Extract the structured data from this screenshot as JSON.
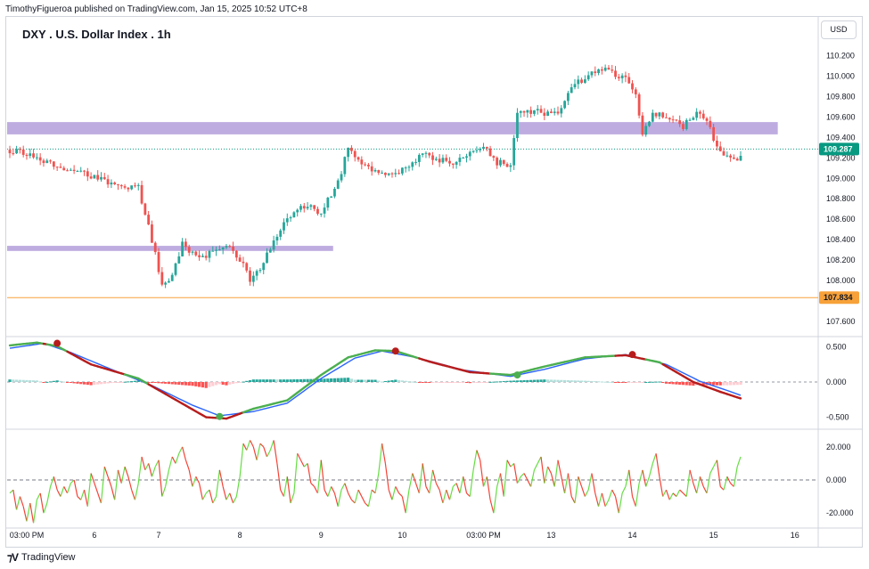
{
  "header": {
    "publish_line": "TimothyFigueroa published on TradingView.com, Jan 15, 2025 10:52 UTC+8",
    "symbol_title": "DXY . U.S. Dollar Index . 1h",
    "currency_button": "USD"
  },
  "footer": {
    "logo_text": "TradingView"
  },
  "colors": {
    "up": "#26a69a",
    "down": "#ef5350",
    "zone": "#b39ddb",
    "support_line": "#f7a13a",
    "last_price": "#089981",
    "macd_line": "#2962ff",
    "signal_line": "#4caf50",
    "signal_line_down": "#b71c1c",
    "hist_up_strong": "#26a69a",
    "hist_up_weak": "#b2dfdb",
    "hist_down_strong": "#ff5252",
    "hist_down_weak": "#ffcdd2",
    "osc_up": "#66dd44",
    "osc_down": "#f44336"
  },
  "chart_data": [
    {
      "type": "candlestick",
      "title": "DXY . U.S. Dollar Index . 1h",
      "y_axis": {
        "ylim": [
          107.47,
          110.5
        ],
        "ticks": [
          "110.200",
          "110.000",
          "109.800",
          "109.600",
          "109.400",
          "109.200",
          "109.000",
          "108.800",
          "108.600",
          "108.400",
          "108.200",
          "108.000",
          "107.600"
        ]
      },
      "x_axis": {
        "ticks": [
          "03:00 PM",
          "6",
          "7",
          "8",
          "9",
          "10",
          "03:00 PM",
          "13",
          "14",
          "15",
          "16"
        ]
      },
      "price_anchors": [
        {
          "t": 0,
          "p": 109.28
        },
        {
          "t": 6,
          "p": 109.22
        },
        {
          "t": 14,
          "p": 109.1
        },
        {
          "t": 22,
          "p": 109.06
        },
        {
          "t": 30,
          "p": 108.95
        },
        {
          "t": 38,
          "p": 108.9
        },
        {
          "t": 42,
          "p": 108.4
        },
        {
          "t": 45,
          "p": 107.96
        },
        {
          "t": 48,
          "p": 108.05
        },
        {
          "t": 51,
          "p": 108.35
        },
        {
          "t": 56,
          "p": 108.22
        },
        {
          "t": 61,
          "p": 108.28
        },
        {
          "t": 65,
          "p": 108.35
        },
        {
          "t": 68,
          "p": 108.2
        },
        {
          "t": 71,
          "p": 108.02
        },
        {
          "t": 74,
          "p": 108.12
        },
        {
          "t": 78,
          "p": 108.4
        },
        {
          "t": 83,
          "p": 108.65
        },
        {
          "t": 87,
          "p": 108.72
        },
        {
          "t": 92,
          "p": 108.68
        },
        {
          "t": 97,
          "p": 108.95
        },
        {
          "t": 100,
          "p": 109.32
        },
        {
          "t": 104,
          "p": 109.15
        },
        {
          "t": 108,
          "p": 109.05
        },
        {
          "t": 113,
          "p": 109.02
        },
        {
          "t": 118,
          "p": 109.12
        },
        {
          "t": 122,
          "p": 109.22
        },
        {
          "t": 126,
          "p": 109.2
        },
        {
          "t": 130,
          "p": 109.16
        },
        {
          "t": 135,
          "p": 109.2
        },
        {
          "t": 140,
          "p": 109.34
        },
        {
          "t": 144,
          "p": 109.16
        },
        {
          "t": 148,
          "p": 109.1
        },
        {
          "t": 150,
          "p": 109.62
        },
        {
          "t": 155,
          "p": 109.66
        },
        {
          "t": 160,
          "p": 109.62
        },
        {
          "t": 163,
          "p": 109.68
        },
        {
          "t": 166,
          "p": 109.9
        },
        {
          "t": 170,
          "p": 109.98
        },
        {
          "t": 174,
          "p": 110.08
        },
        {
          "t": 178,
          "p": 110.02
        },
        {
          "t": 182,
          "p": 109.96
        },
        {
          "t": 185,
          "p": 109.82
        },
        {
          "t": 187,
          "p": 109.45
        },
        {
          "t": 190,
          "p": 109.62
        },
        {
          "t": 195,
          "p": 109.6
        },
        {
          "t": 199,
          "p": 109.5
        },
        {
          "t": 203,
          "p": 109.65
        },
        {
          "t": 206,
          "p": 109.55
        },
        {
          "t": 209,
          "p": 109.3
        },
        {
          "t": 213,
          "p": 109.2
        },
        {
          "t": 216,
          "p": 109.2
        },
        {
          "t": 219,
          "p": 109.287
        }
      ],
      "zones": [
        {
          "from": 109.43,
          "to": 109.55,
          "x_end_fraction": 0.95
        },
        {
          "from": 108.29,
          "to": 108.34,
          "x_end_fraction": 0.4
        }
      ],
      "support_level": {
        "value": 107.834,
        "label": "107.834"
      },
      "last_price": {
        "value": 109.287,
        "label": "109.287"
      }
    },
    {
      "type": "line",
      "name": "MACD panel",
      "y_axis": {
        "ylim": [
          -0.62,
          0.62
        ],
        "ticks": [
          "0.500",
          "0.000",
          "-0.500"
        ]
      },
      "signal_anchors": [
        {
          "t": 0,
          "v": 0.52
        },
        {
          "t": 8,
          "v": 0.56
        },
        {
          "t": 14,
          "v": 0.51
        },
        {
          "t": 24,
          "v": 0.25
        },
        {
          "t": 38,
          "v": 0.05
        },
        {
          "t": 50,
          "v": -0.28
        },
        {
          "t": 58,
          "v": -0.5
        },
        {
          "t": 64,
          "v": -0.52
        },
        {
          "t": 72,
          "v": -0.38
        },
        {
          "t": 82,
          "v": -0.26
        },
        {
          "t": 92,
          "v": 0.1
        },
        {
          "t": 100,
          "v": 0.35
        },
        {
          "t": 108,
          "v": 0.45
        },
        {
          "t": 114,
          "v": 0.44
        },
        {
          "t": 124,
          "v": 0.29
        },
        {
          "t": 136,
          "v": 0.14
        },
        {
          "t": 148,
          "v": 0.1
        },
        {
          "t": 158,
          "v": 0.22
        },
        {
          "t": 170,
          "v": 0.35
        },
        {
          "t": 182,
          "v": 0.38
        },
        {
          "t": 192,
          "v": 0.28
        },
        {
          "t": 202,
          "v": 0.0
        },
        {
          "t": 210,
          "v": -0.14
        },
        {
          "t": 219,
          "v": -0.28
        }
      ],
      "macd_anchors": [
        {
          "t": 0,
          "v": 0.48
        },
        {
          "t": 10,
          "v": 0.55
        },
        {
          "t": 18,
          "v": 0.42
        },
        {
          "t": 30,
          "v": 0.18
        },
        {
          "t": 42,
          "v": -0.05
        },
        {
          "t": 54,
          "v": -0.33
        },
        {
          "t": 62,
          "v": -0.48
        },
        {
          "t": 72,
          "v": -0.42
        },
        {
          "t": 82,
          "v": -0.3
        },
        {
          "t": 92,
          "v": 0.05
        },
        {
          "t": 102,
          "v": 0.34
        },
        {
          "t": 110,
          "v": 0.44
        },
        {
          "t": 120,
          "v": 0.35
        },
        {
          "t": 134,
          "v": 0.17
        },
        {
          "t": 148,
          "v": 0.08
        },
        {
          "t": 158,
          "v": 0.18
        },
        {
          "t": 170,
          "v": 0.33
        },
        {
          "t": 182,
          "v": 0.39
        },
        {
          "t": 194,
          "v": 0.25
        },
        {
          "t": 204,
          "v": 0.01
        },
        {
          "t": 212,
          "v": -0.12
        },
        {
          "t": 219,
          "v": -0.24
        }
      ],
      "cross_markers": [
        {
          "t": 14,
          "v": 0.55,
          "dir": "down"
        },
        {
          "t": 62,
          "v": -0.49,
          "dir": "up"
        },
        {
          "t": 114,
          "v": 0.44,
          "dir": "down"
        },
        {
          "t": 150,
          "v": 0.1,
          "dir": "up"
        },
        {
          "t": 184,
          "v": 0.39,
          "dir": "down"
        }
      ]
    },
    {
      "type": "line",
      "name": "Oscillator panel",
      "y_axis": {
        "ylim": [
          -28,
          28
        ],
        "ticks": [
          "20.000",
          "0.000",
          "-20.000"
        ]
      },
      "reference_line": 0,
      "values": [
        -8,
        -6,
        -18,
        -10,
        -16,
        -25,
        -14,
        -26,
        -12,
        -8,
        -20,
        -14,
        -4,
        2,
        -6,
        -10,
        -4,
        -8,
        -2,
        0,
        -10,
        -12,
        -6,
        -16,
        4,
        -2,
        -8,
        -14,
        8,
        2,
        -4,
        -12,
        6,
        -2,
        8,
        2,
        -6,
        -12,
        -2,
        14,
        6,
        10,
        2,
        8,
        12,
        -10,
        -4,
        6,
        14,
        10,
        16,
        20,
        12,
        6,
        -4,
        2,
        -2,
        -12,
        -8,
        -6,
        -14,
        -10,
        6,
        -4,
        -12,
        -8,
        -14,
        -10,
        2,
        22,
        18,
        24,
        20,
        12,
        22,
        20,
        14,
        18,
        24,
        10,
        -6,
        -10,
        2,
        -14,
        -8,
        16,
        12,
        8,
        10,
        -2,
        -4,
        -8,
        12,
        -6,
        -10,
        -4,
        -8,
        -16,
        -6,
        -2,
        -8,
        -12,
        -14,
        -6,
        -10,
        -14,
        -16,
        -6,
        -8,
        4,
        22,
        10,
        -6,
        -12,
        -4,
        -8,
        -10,
        -20,
        -6,
        4,
        -2,
        -8,
        10,
        -4,
        -8,
        6,
        -2,
        -6,
        -14,
        -6,
        -12,
        -4,
        -2,
        -8,
        2,
        -8,
        -10,
        6,
        18,
        12,
        -4,
        2,
        -12,
        -20,
        -4,
        4,
        -10,
        12,
        8,
        10,
        -2,
        2,
        4,
        0,
        -4,
        6,
        10,
        14,
        -2,
        8,
        4,
        -4,
        12,
        2,
        -8,
        4,
        -10,
        -14,
        2,
        -4,
        -10,
        -6,
        4,
        -8,
        -16,
        -8,
        -16,
        -12,
        -6,
        -10,
        -20,
        -8,
        -4,
        6,
        -10,
        -16,
        -2,
        6,
        -4,
        2,
        10,
        16,
        2,
        -10,
        -6,
        -12,
        -8,
        -10,
        -6,
        -8,
        -10,
        6,
        -2,
        -8,
        2,
        -4,
        -8,
        4,
        8,
        12,
        -4,
        -6,
        2,
        -2,
        -4,
        8,
        14
      ]
    }
  ]
}
